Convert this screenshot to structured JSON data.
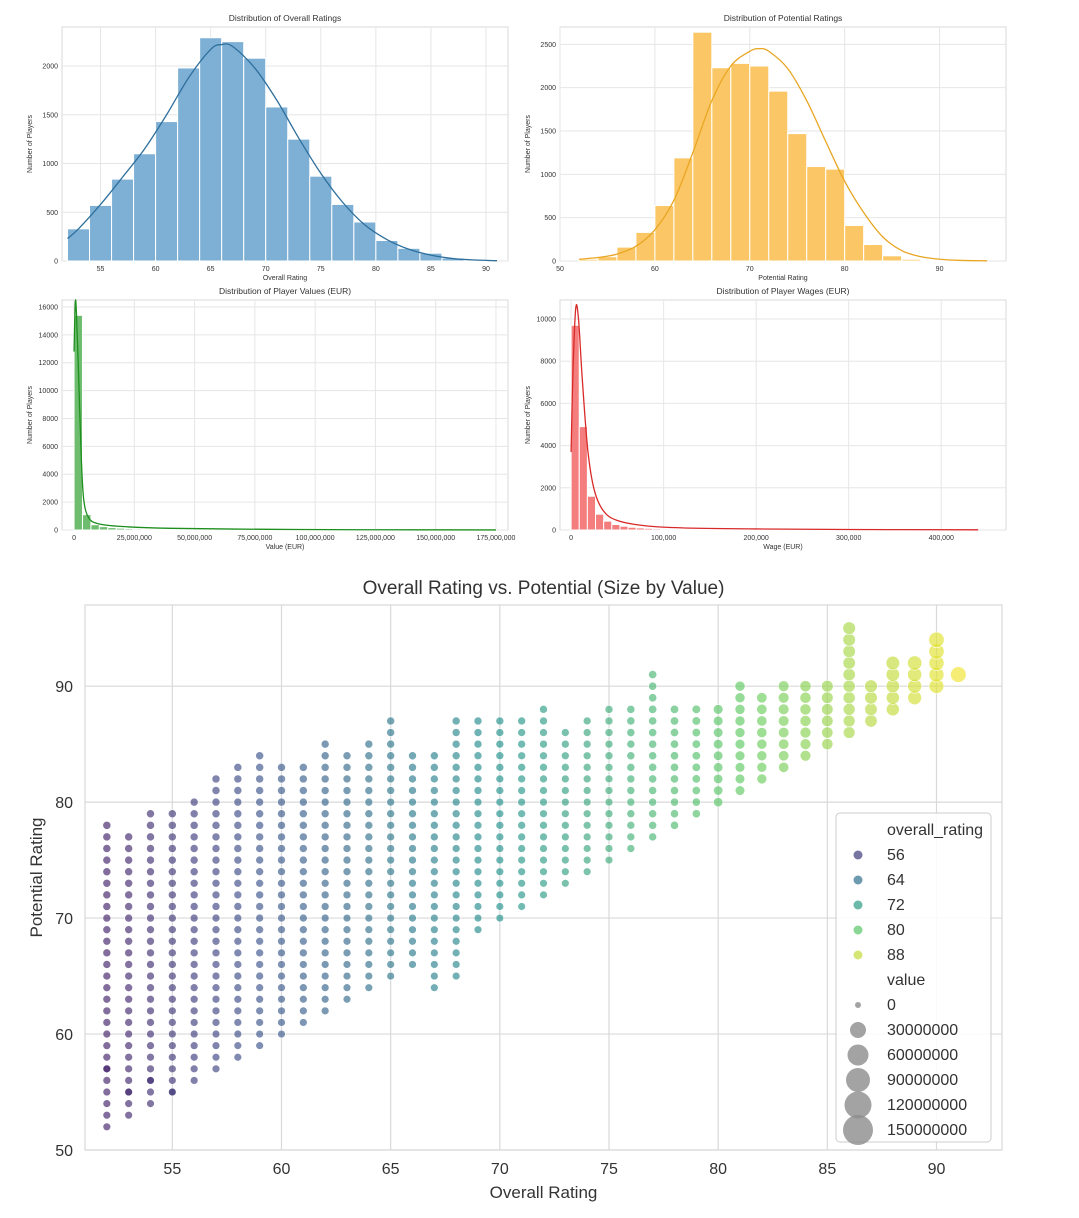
{
  "chart_data": [
    {
      "type": "histogram",
      "title": "Distribution of Overall Ratings",
      "xlabel": "Overall Rating",
      "ylabel": "Number of Players",
      "xlim": [
        51.5,
        92
      ],
      "ylim": [
        0,
        2400
      ],
      "xticks": [
        55,
        60,
        65,
        70,
        75,
        80,
        85,
        90
      ],
      "yticks": [
        0,
        500,
        1000,
        1500,
        2000
      ],
      "grid": true,
      "bar_color": "#7eb0d5",
      "line_color": "#2e6f9c",
      "bin_edges": [
        52,
        54,
        56,
        58,
        60,
        62,
        64,
        66,
        68,
        70,
        72,
        74,
        76,
        78,
        80,
        82,
        84,
        86,
        88,
        90
      ],
      "values": [
        330,
        570,
        840,
        1100,
        1430,
        1980,
        2290,
        2250,
        2080,
        1580,
        1250,
        870,
        580,
        400,
        210,
        130,
        80,
        30,
        10
      ],
      "kde": {
        "x": [
          52,
          53,
          55,
          57,
          59,
          61,
          63,
          65,
          66,
          67,
          69,
          71,
          73,
          75,
          77,
          79,
          81,
          83,
          85,
          87,
          89,
          91
        ],
        "y": [
          230,
          330,
          580,
          860,
          1150,
          1500,
          1880,
          2170,
          2220,
          2200,
          1980,
          1650,
          1260,
          900,
          600,
          370,
          220,
          120,
          60,
          25,
          10,
          3
        ]
      }
    },
    {
      "type": "histogram",
      "title": "Distribution of Potential Ratings",
      "xlabel": "Potential Rating",
      "ylabel": "Number of Players",
      "xlim": [
        50,
        97
      ],
      "ylim": [
        0,
        2700
      ],
      "xticks": [
        50,
        60,
        70,
        80,
        90
      ],
      "yticks": [
        0,
        500,
        1000,
        1500,
        2000,
        2500
      ],
      "grid": true,
      "bar_color": "#fbc766",
      "line_color": "#e9a623",
      "bin_edges": [
        52,
        54,
        56,
        58,
        60,
        62,
        64,
        66,
        68,
        70,
        72,
        74,
        76,
        78,
        80,
        82,
        84,
        86,
        88,
        90,
        92,
        94
      ],
      "values": [
        20,
        50,
        160,
        330,
        640,
        1190,
        2640,
        2230,
        2280,
        2250,
        1960,
        1470,
        1090,
        1060,
        410,
        190,
        60,
        20,
        10,
        5,
        2
      ],
      "kde": {
        "x": [
          52,
          54,
          56,
          58,
          60,
          62,
          64,
          66,
          68,
          70,
          71,
          72,
          74,
          76,
          78,
          80,
          82,
          84,
          86,
          88,
          90,
          92,
          95
        ],
        "y": [
          20,
          40,
          80,
          170,
          360,
          700,
          1250,
          1850,
          2250,
          2420,
          2450,
          2420,
          2220,
          1850,
          1380,
          920,
          560,
          280,
          120,
          50,
          20,
          8,
          2
        ]
      }
    },
    {
      "type": "histogram",
      "title": "Distribution of Player Values (EUR)",
      "xlabel": "Value (EUR)",
      "ylabel": "Number of Players",
      "xlim": [
        -5000000,
        180000000
      ],
      "ylim": [
        0,
        16500
      ],
      "xticks": [
        0,
        25000000,
        50000000,
        75000000,
        100000000,
        125000000,
        150000000,
        175000000
      ],
      "xtick_labels": [
        "0",
        "25,000,000",
        "50,000,000",
        "75,000,000",
        "100,000,000",
        "125,000,000",
        "150,000,000",
        "175,000,000"
      ],
      "yticks": [
        0,
        2000,
        4000,
        6000,
        8000,
        10000,
        12000,
        14000,
        16000
      ],
      "grid": true,
      "bar_color": "#6ebd6e",
      "line_color": "#1e8f1e",
      "bin_width": 3500000,
      "bin_start": 0,
      "values": [
        15400,
        1100,
        380,
        240,
        170,
        130,
        100,
        80,
        70,
        60,
        50,
        45,
        40,
        35,
        30,
        28,
        25,
        22,
        20,
        18,
        16,
        15,
        14,
        13,
        12,
        11,
        10,
        9,
        8,
        8,
        7,
        7,
        6,
        6,
        5,
        5,
        4,
        4,
        4,
        3,
        3,
        3,
        3,
        2,
        2,
        2,
        2,
        2,
        2,
        1
      ],
      "kde": {
        "x": [
          0,
          500000,
          1000000,
          2000000,
          3000000,
          4000000,
          6000000,
          10000000,
          20000000,
          40000000,
          80000000,
          120000000,
          175000000
        ],
        "y": [
          12800,
          16300,
          15500,
          10500,
          5200,
          2200,
          900,
          450,
          250,
          120,
          50,
          20,
          5
        ]
      }
    },
    {
      "type": "histogram",
      "title": "Distribution of Player Wages (EUR)",
      "xlabel": "Wage (EUR)",
      "ylabel": "Number of Players",
      "xlim": [
        -12000,
        470000
      ],
      "ylim": [
        0,
        10900
      ],
      "xticks": [
        0,
        100000,
        200000,
        300000,
        400000
      ],
      "xtick_labels": [
        "0",
        "100,000",
        "200,000",
        "300,000",
        "400,000"
      ],
      "yticks": [
        0,
        2000,
        4000,
        6000,
        8000,
        10000
      ],
      "grid": true,
      "bar_color": "#f47d7d",
      "line_color": "#d92a2a",
      "bin_width": 8800,
      "bin_start": 0,
      "values": [
        9700,
        4900,
        1600,
        750,
        420,
        260,
        180,
        130,
        100,
        80,
        60,
        50,
        40,
        35,
        30,
        25,
        22,
        18,
        15,
        12,
        10,
        9,
        8,
        7,
        6,
        5,
        5,
        4,
        4,
        3,
        3,
        3,
        2,
        2,
        2,
        2,
        2,
        1,
        1,
        1,
        1,
        1,
        1,
        1,
        1,
        1,
        1,
        1,
        1,
        1
      ],
      "kde": {
        "x": [
          0,
          2000,
          5000,
          8000,
          12000,
          18000,
          25000,
          35000,
          50000,
          80000,
          120000,
          200000,
          300000,
          440000
        ],
        "y": [
          3700,
          7500,
          10500,
          10000,
          7200,
          3800,
          1900,
          900,
          450,
          200,
          100,
          50,
          25,
          8
        ]
      }
    },
    {
      "type": "scatter",
      "title": "Overall Rating vs. Potential (Size by Value)",
      "xlabel": "Overall Rating",
      "ylabel": "Potential Rating",
      "xlim": [
        51,
        93
      ],
      "ylim": [
        50,
        97
      ],
      "xticks": [
        55,
        60,
        65,
        70,
        75,
        80,
        85,
        90
      ],
      "yticks": [
        50,
        60,
        70,
        80,
        90
      ],
      "grid": true,
      "colormap": [
        "#440154",
        "#3b528b",
        "#21918c",
        "#5ec962",
        "#fde725"
      ],
      "rating_range": [
        48,
        92
      ],
      "value_max": 150000000,
      "columns": [
        [
          52,
          52,
          57,
          78
        ],
        [
          53,
          53,
          55,
          77
        ],
        [
          54,
          54,
          56,
          79
        ],
        [
          55,
          55,
          55,
          79
        ],
        [
          56,
          56,
          80
        ],
        [
          57,
          57,
          82
        ],
        [
          58,
          58,
          83
        ],
        [
          59,
          59,
          84
        ],
        [
          60,
          60,
          83
        ],
        [
          61,
          61,
          83
        ],
        [
          62,
          62,
          85
        ],
        [
          63,
          63,
          84
        ],
        [
          64,
          64,
          85
        ],
        [
          65,
          65,
          87
        ],
        [
          66,
          66,
          84
        ],
        [
          67,
          64,
          84
        ],
        [
          68,
          65,
          87
        ],
        [
          69,
          69,
          87
        ],
        [
          70,
          70,
          87
        ],
        [
          71,
          71,
          87
        ],
        [
          72,
          72,
          88
        ],
        [
          73,
          73,
          86
        ],
        [
          74,
          74,
          87
        ],
        [
          75,
          75,
          88
        ],
        [
          76,
          76,
          88
        ],
        [
          77,
          77,
          91
        ],
        [
          78,
          78,
          88
        ],
        [
          79,
          79,
          88
        ],
        [
          80,
          80,
          88
        ],
        [
          81,
          81,
          90
        ],
        [
          82,
          82,
          89
        ],
        [
          83,
          83,
          90
        ],
        [
          84,
          84,
          90
        ],
        [
          85,
          85,
          90
        ],
        [
          86,
          86,
          95
        ],
        [
          87,
          87,
          90
        ],
        [
          88,
          88,
          92
        ],
        [
          89,
          89,
          92
        ],
        [
          90,
          90,
          94
        ],
        [
          91,
          91,
          91
        ]
      ],
      "legend": {
        "placement": "lower-right",
        "hue_title": "overall_rating",
        "hue_entries": [
          "56",
          "64",
          "72",
          "80",
          "88"
        ],
        "size_title": "value",
        "size_entries": [
          "0",
          "30000000",
          "60000000",
          "90000000",
          "120000000",
          "150000000"
        ]
      }
    }
  ]
}
